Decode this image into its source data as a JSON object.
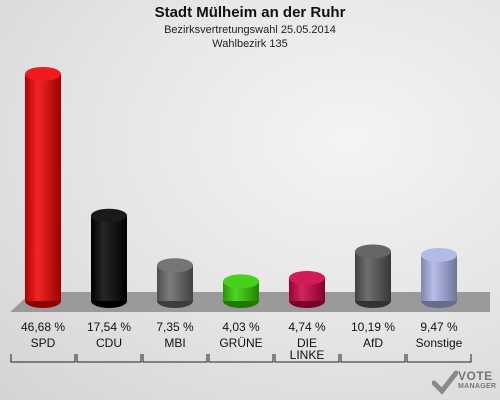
{
  "header": {
    "title": "Stadt Mülheim an der Ruhr",
    "subtitle": "Bezirksvertretungswahl 25.05.2014",
    "subtitle2": "Wahlbezirk 135"
  },
  "logo": {
    "line1": "VOTE",
    "line2": "MANAGER"
  },
  "chart_data": {
    "type": "bar",
    "title": "Stadt Mülheim an der Ruhr",
    "subtitle": "Bezirksvertretungswahl 25.05.2014 / Wahlbezirk 135",
    "categories": [
      "SPD",
      "CDU",
      "MBI",
      "GRÜNE",
      "DIE LINKE",
      "AfD",
      "Sonstige"
    ],
    "category_lines": [
      [
        "SPD"
      ],
      [
        "CDU"
      ],
      [
        "MBI"
      ],
      [
        "GRÜNE"
      ],
      [
        "DIE",
        "LINKE"
      ],
      [
        "AfD"
      ],
      [
        "Sonstige"
      ]
    ],
    "values": [
      46.68,
      17.54,
      7.35,
      4.03,
      4.74,
      10.19,
      9.47
    ],
    "value_labels": [
      "46,68 %",
      "17,54 %",
      "7,35 %",
      "4,03 %",
      "4,74 %",
      "10,19 %",
      "9,47 %"
    ],
    "colors": [
      "#ee0000",
      "#000000",
      "#666666",
      "#33cc00",
      "#cc0044",
      "#555555",
      "#aab4e6"
    ],
    "ylim": [
      0,
      50
    ],
    "grid": false,
    "legend": "none"
  }
}
